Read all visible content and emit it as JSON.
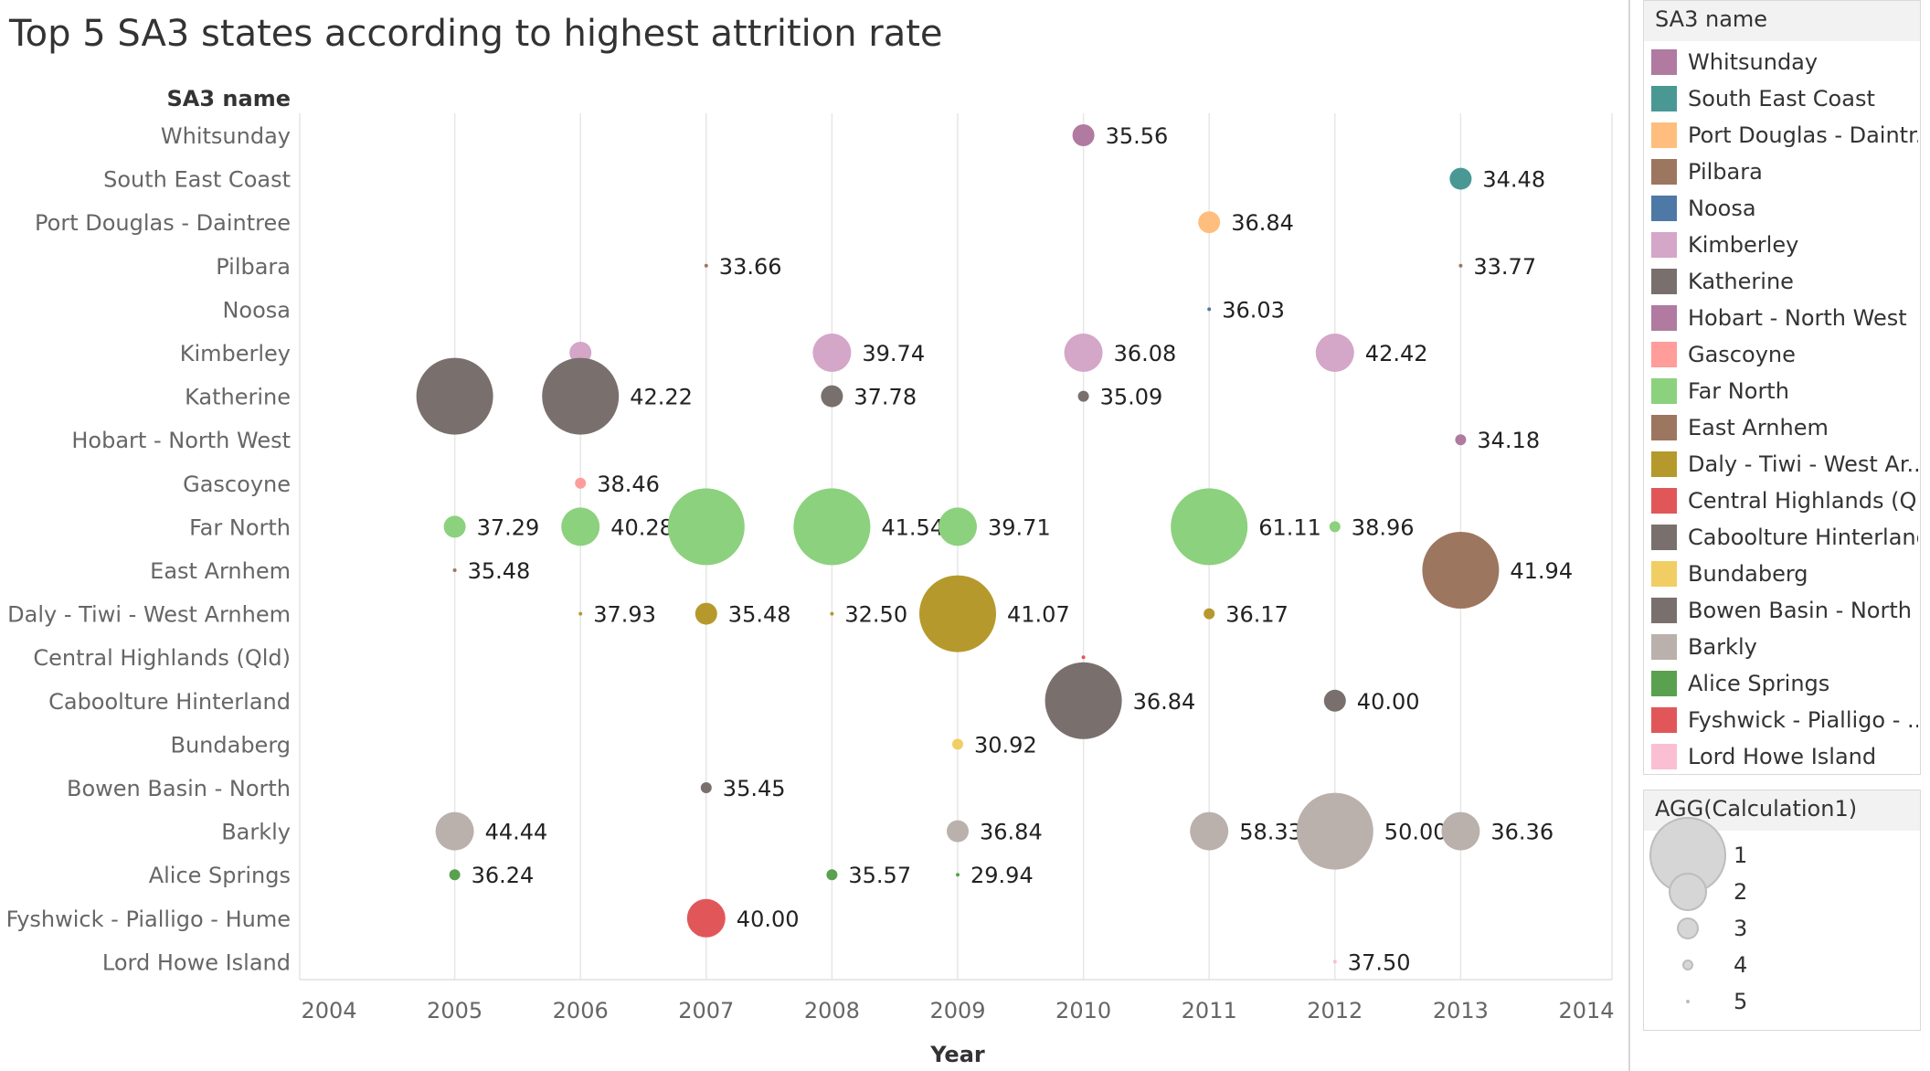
{
  "title": "Top 5 SA3 states according to highest attrition rate",
  "chart_data": {
    "type": "scatter",
    "title": "Top 5 SA3 states according to highest attrition rate",
    "ylabel": "SA3 name",
    "xlabel": "Year",
    "x_ticks": [
      "2004",
      "2005",
      "2006",
      "2007",
      "2008",
      "2009",
      "2010",
      "2011",
      "2012",
      "2013",
      "2014"
    ],
    "xlim": [
      2004,
      2014
    ],
    "categories": [
      "Whitsunday",
      "South East Coast",
      "Port Douglas - Daintree",
      "Pilbara",
      "Noosa",
      "Kimberley",
      "Katherine",
      "Hobart - North West",
      "Gascoyne",
      "Far North",
      "East Arnhem",
      "Daly - Tiwi - West Arnhem",
      "Central Highlands (Qld)",
      "Caboolture Hinterland",
      "Bundaberg",
      "Bowen Basin - North",
      "Barkly",
      "Alice Springs",
      "Fyshwick - Pialligo - Hume",
      "Lord Howe Island"
    ],
    "grid": "vertical",
    "size_encoding": "AGG(Calculation1)",
    "points": [
      {
        "category": "Whitsunday",
        "x": 2010,
        "y": 35.56,
        "label": "35.56",
        "size": 3
      },
      {
        "category": "South East Coast",
        "x": 2013,
        "y": 34.48,
        "label": "34.48",
        "size": 3
      },
      {
        "category": "Port Douglas - Daintree",
        "x": 2011,
        "y": 36.84,
        "label": "36.84",
        "size": 3
      },
      {
        "category": "Pilbara",
        "x": 2007,
        "y": 33.66,
        "label": "33.66",
        "size": 5
      },
      {
        "category": "Pilbara",
        "x": 2013,
        "y": 33.77,
        "label": "33.77",
        "size": 5
      },
      {
        "category": "Noosa",
        "x": 2011,
        "y": 36.03,
        "label": "36.03",
        "size": 5
      },
      {
        "category": "Kimberley",
        "x": 2006,
        "y": null,
        "label": "",
        "size": 3
      },
      {
        "category": "Kimberley",
        "x": 2008,
        "y": 39.74,
        "label": "39.74",
        "size": 2
      },
      {
        "category": "Kimberley",
        "x": 2010,
        "y": 36.08,
        "label": "36.08",
        "size": 2
      },
      {
        "category": "Kimberley",
        "x": 2012,
        "y": 42.42,
        "label": "42.42",
        "size": 2
      },
      {
        "category": "Katherine",
        "x": 2005,
        "y": null,
        "label": "",
        "size": 1
      },
      {
        "category": "Katherine",
        "x": 2006,
        "y": 42.22,
        "label": "42.22",
        "size": 1
      },
      {
        "category": "Katherine",
        "x": 2008,
        "y": 37.78,
        "label": "37.78",
        "size": 3
      },
      {
        "category": "Katherine",
        "x": 2010,
        "y": 35.09,
        "label": "35.09",
        "size": 4
      },
      {
        "category": "Hobart - North West",
        "x": 2013,
        "y": 34.18,
        "label": "34.18",
        "size": 4
      },
      {
        "category": "Gascoyne",
        "x": 2006,
        "y": 38.46,
        "label": "38.46",
        "size": 4
      },
      {
        "category": "Far North",
        "x": 2005,
        "y": 37.29,
        "label": "37.29",
        "size": 3
      },
      {
        "category": "Far North",
        "x": 2006,
        "y": 40.28,
        "label": "40.28",
        "size": 2
      },
      {
        "category": "Far North",
        "x": 2007,
        "y": null,
        "label": "",
        "size": 1
      },
      {
        "category": "Far North",
        "x": 2008,
        "y": 41.54,
        "label": "41.54",
        "size": 1
      },
      {
        "category": "Far North",
        "x": 2009,
        "y": 39.71,
        "label": "39.71",
        "size": 2
      },
      {
        "category": "Far North",
        "x": 2011,
        "y": 61.11,
        "label": "61.11",
        "size": 1
      },
      {
        "category": "Far North",
        "x": 2012,
        "y": 38.96,
        "label": "38.96",
        "size": 4
      },
      {
        "category": "East Arnhem",
        "x": 2005,
        "y": 35.48,
        "label": "35.48",
        "size": 5
      },
      {
        "category": "East Arnhem",
        "x": 2013,
        "y": 41.94,
        "label": "41.94",
        "size": 1
      },
      {
        "category": "Daly - Tiwi - West Arnhem",
        "x": 2006,
        "y": 37.93,
        "label": "37.93",
        "size": 5
      },
      {
        "category": "Daly - Tiwi - West Arnhem",
        "x": 2007,
        "y": 35.48,
        "label": "35.48",
        "size": 3
      },
      {
        "category": "Daly - Tiwi - West Arnhem",
        "x": 2008,
        "y": 32.5,
        "label": "32.50",
        "size": 5
      },
      {
        "category": "Daly - Tiwi - West Arnhem",
        "x": 2009,
        "y": 41.07,
        "label": "41.07",
        "size": 1
      },
      {
        "category": "Daly - Tiwi - West Arnhem",
        "x": 2011,
        "y": 36.17,
        "label": "36.17",
        "size": 4
      },
      {
        "category": "Central Highlands (Qld)",
        "x": 2010,
        "y": null,
        "label": "",
        "size": 5
      },
      {
        "category": "Caboolture Hinterland",
        "x": 2010,
        "y": 36.84,
        "label": "36.84",
        "size": 1
      },
      {
        "category": "Caboolture Hinterland",
        "x": 2012,
        "y": 40.0,
        "label": "40.00",
        "size": 3
      },
      {
        "category": "Bundaberg",
        "x": 2009,
        "y": 30.92,
        "label": "30.92",
        "size": 4
      },
      {
        "category": "Bowen Basin - North",
        "x": 2007,
        "y": 35.45,
        "label": "35.45",
        "size": 4
      },
      {
        "category": "Barkly",
        "x": 2005,
        "y": 44.44,
        "label": "44.44",
        "size": 2
      },
      {
        "category": "Barkly",
        "x": 2009,
        "y": 36.84,
        "label": "36.84",
        "size": 3
      },
      {
        "category": "Barkly",
        "x": 2011,
        "y": 58.33,
        "label": "58.33",
        "size": 2
      },
      {
        "category": "Barkly",
        "x": 2012,
        "y": 50.0,
        "label": "50.00",
        "size": 1
      },
      {
        "category": "Barkly",
        "x": 2013,
        "y": 36.36,
        "label": "36.36",
        "size": 2
      },
      {
        "category": "Alice Springs",
        "x": 2005,
        "y": 36.24,
        "label": "36.24",
        "size": 4
      },
      {
        "category": "Alice Springs",
        "x": 2008,
        "y": 35.57,
        "label": "35.57",
        "size": 4
      },
      {
        "category": "Alice Springs",
        "x": 2009,
        "y": 29.94,
        "label": "29.94",
        "size": 5
      },
      {
        "category": "Fyshwick - Pialligo - Hume",
        "x": 2007,
        "y": 40.0,
        "label": "40.00",
        "size": 2
      },
      {
        "category": "Lord Howe Island",
        "x": 2012,
        "y": 37.5,
        "label": "37.50",
        "size": 5
      }
    ]
  },
  "legend": {
    "title": "SA3 name",
    "items": [
      {
        "label": "Whitsunday",
        "color": "#b07aa1"
      },
      {
        "label": "South East Coast",
        "color": "#499894"
      },
      {
        "label": "Port Douglas - Daintr..",
        "color": "#ffbe7d"
      },
      {
        "label": "Pilbara",
        "color": "#9d7660"
      },
      {
        "label": "Noosa",
        "color": "#4e79a7"
      },
      {
        "label": "Kimberley",
        "color": "#d4a6c8"
      },
      {
        "label": "Katherine",
        "color": "#79706e"
      },
      {
        "label": "Hobart - North West",
        "color": "#b07aa1"
      },
      {
        "label": "Gascoyne",
        "color": "#ff9d9a"
      },
      {
        "label": "Far North",
        "color": "#8cd17d"
      },
      {
        "label": "East Arnhem",
        "color": "#9d7660"
      },
      {
        "label": "Daly - Tiwi - West Ar..",
        "color": "#b6992d"
      },
      {
        "label": "Central Highlands (Q..",
        "color": "#e15759"
      },
      {
        "label": "Caboolture Hinterland",
        "color": "#79706e"
      },
      {
        "label": "Bundaberg",
        "color": "#f1ce63"
      },
      {
        "label": "Bowen Basin - North",
        "color": "#79706e"
      },
      {
        "label": "Barkly",
        "color": "#bab0ac"
      },
      {
        "label": "Alice Springs",
        "color": "#59a14f"
      },
      {
        "label": "Fyshwick - Pialligo - ..",
        "color": "#e15759"
      },
      {
        "label": "Lord Howe Island",
        "color": "#fabfd2"
      }
    ]
  },
  "size_legend": {
    "title": "AGG(Calculation1)",
    "items": [
      "1",
      "2",
      "3",
      "4",
      "5"
    ]
  }
}
